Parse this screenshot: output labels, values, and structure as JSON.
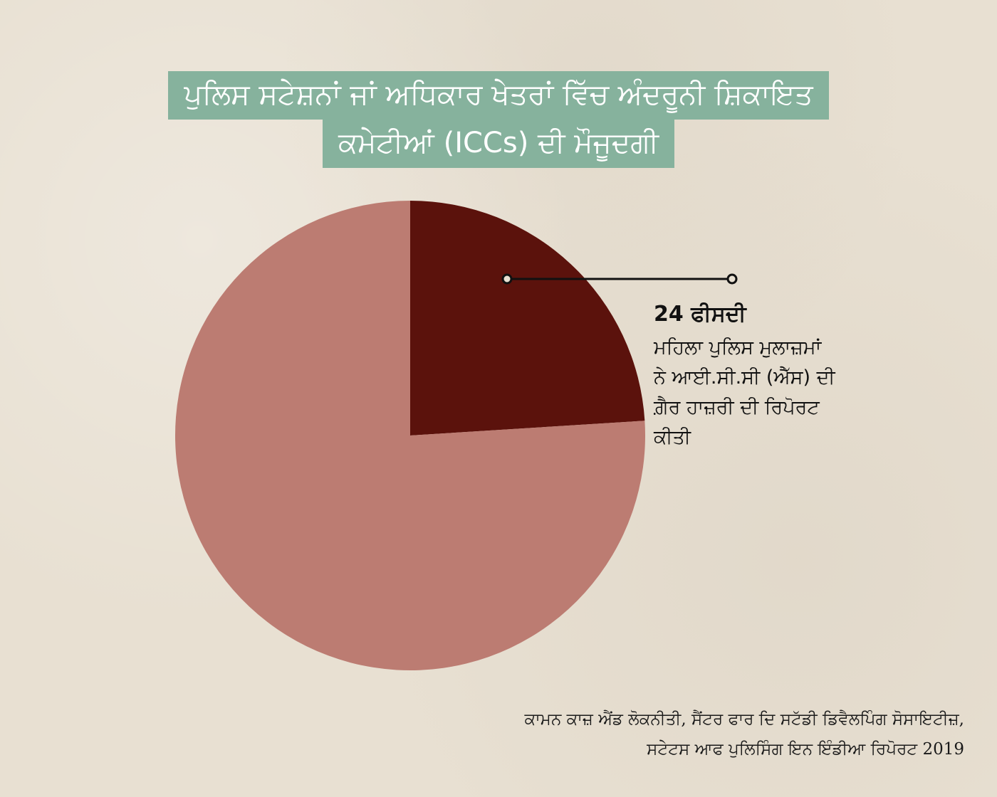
{
  "title": {
    "line1": "ਪੁਲਿਸ ਸਟੇਸ਼ਨਾਂ ਜਾਂ ਅਧਿਕਾਰ ਖੇਤਰਾਂ ਵਿੱਚ ਅੰਦਰੂਨੀ ਸ਼ਿਕਾਇਤ",
    "line2": "ਕਮੇਟੀਆਂ (ICCs) ਦੀ ਮੌਜੂਦਗੀ"
  },
  "callout": {
    "value": "24 ਫੀਸਦੀ",
    "description": " ਮਹਿਲਾ ਪੁਲਿਸ ਮੁਲਾਜ਼ਮਾਂ\nਨੇ ਆਈ.ਸੀ.ਸੀ (ਐੱਸ) ਦੀ\nਗ਼ੈਰ ਹਾਜ਼ਰੀ ਦੀ ਰਿਪੋਰਟ\nਕੀਤੀ"
  },
  "source": {
    "line1": "ਕਾਮਨ ਕਾਜ਼ ਐਂਡ ਲੋਕਨੀਤੀ, ਸੈਂਟਰ ਫਾਰ ਦਿ ਸਟੱਡੀ ਡਿਵੈਲਪਿੰਗ ਸੋਸਾਇਟੀਜ਼,",
    "line2": "ਸਟੇਟਸ ਆਫ ਪੁਲਿਸਿੰਗ ਇਨ ਇੰਡੀਆ ਰਿਪੋਰਟ 2019"
  },
  "colors": {
    "background": "#e8e0d2",
    "title_bg": "#86b29d",
    "highlight_slice": "#5b120c",
    "rest_slice": "#bc7c72"
  },
  "chart_data": {
    "type": "pie",
    "slices": [
      {
        "value": 24,
        "color": "#5b120c"
      },
      {
        "value": 76,
        "color": "#bc7c72"
      }
    ]
  }
}
